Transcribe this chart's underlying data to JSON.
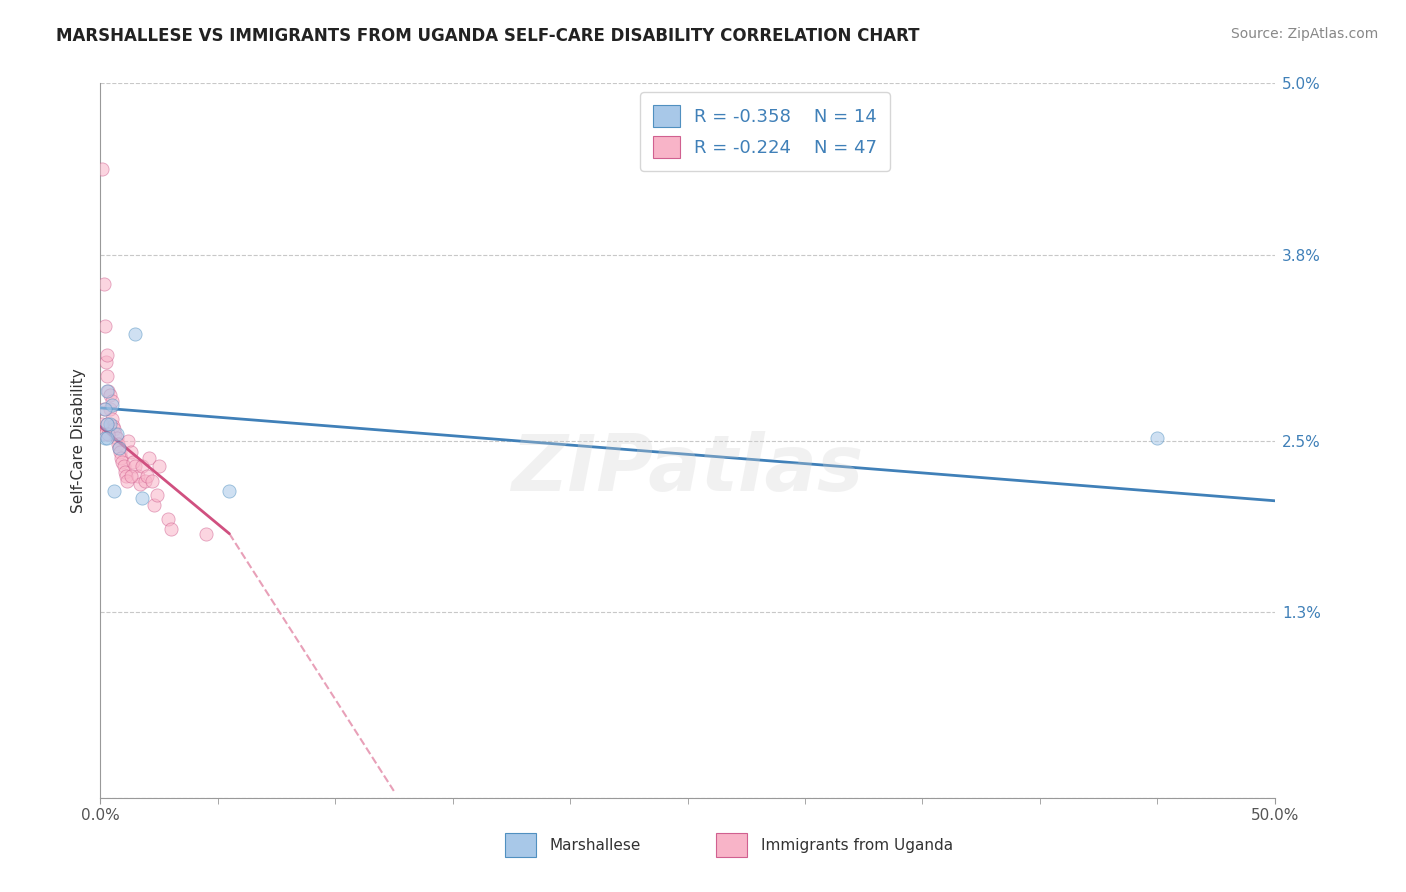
{
  "title": "MARSHALLESE VS IMMIGRANTS FROM UGANDA SELF-CARE DISABILITY CORRELATION CHART",
  "source": "Source: ZipAtlas.com",
  "ylabel": "Self-Care Disability",
  "xlim": [
    0.0,
    50.0
  ],
  "ylim": [
    0.0,
    5.0
  ],
  "yticks": [
    0.0,
    1.3,
    2.5,
    3.8,
    5.0
  ],
  "ytick_labels": [
    "",
    "1.3%",
    "2.5%",
    "3.8%",
    "5.0%"
  ],
  "xtick_labels": [
    "0.0%",
    "50.0%"
  ],
  "grid_color": "#c8c8c8",
  "background_color": "#ffffff",
  "blue_color": "#a8c8e8",
  "pink_color": "#f8b4c8",
  "blue_edge_color": "#5090c0",
  "pink_edge_color": "#d06090",
  "blue_line_color": "#4080b8",
  "pink_line_color": "#d05080",
  "dashed_line_color": "#e8a0b8",
  "legend_R_blue": "R = -0.358",
  "legend_N_blue": "N = 14",
  "legend_R_pink": "R = -0.224",
  "legend_N_pink": "N = 47",
  "legend_label_blue": "Marshallese",
  "legend_label_pink": "Immigrants from Uganda",
  "blue_scatter_x": [
    0.3,
    0.5,
    1.5,
    0.7,
    0.2,
    0.4,
    0.8,
    0.3,
    1.8,
    0.2,
    0.6,
    0.3,
    45.0,
    5.5
  ],
  "blue_scatter_y": [
    2.85,
    2.75,
    3.25,
    2.55,
    2.72,
    2.62,
    2.45,
    2.62,
    2.1,
    2.52,
    2.15,
    2.52,
    2.52,
    2.15
  ],
  "pink_scatter_x": [
    0.1,
    0.15,
    0.2,
    0.25,
    0.3,
    0.3,
    0.35,
    0.4,
    0.4,
    0.5,
    0.5,
    0.55,
    0.6,
    0.65,
    0.7,
    0.75,
    0.8,
    0.85,
    0.9,
    0.95,
    1.0,
    1.05,
    1.1,
    1.15,
    1.2,
    1.3,
    1.4,
    1.5,
    1.6,
    1.7,
    1.8,
    1.9,
    2.0,
    2.1,
    2.2,
    2.3,
    2.4,
    2.5,
    2.9,
    3.0,
    0.1,
    0.15,
    0.2,
    0.3,
    0.35,
    1.3,
    4.5
  ],
  "pink_scatter_y": [
    4.4,
    3.6,
    3.3,
    3.05,
    2.95,
    3.1,
    2.85,
    2.82,
    2.72,
    2.78,
    2.65,
    2.6,
    2.58,
    2.55,
    2.52,
    2.48,
    2.45,
    2.42,
    2.38,
    2.35,
    2.32,
    2.28,
    2.25,
    2.22,
    2.5,
    2.42,
    2.35,
    2.32,
    2.25,
    2.2,
    2.32,
    2.22,
    2.25,
    2.38,
    2.22,
    2.05,
    2.12,
    2.32,
    1.95,
    1.88,
    2.62,
    2.72,
    2.55,
    2.62,
    2.55,
    2.25,
    1.85
  ],
  "blue_trend_x": [
    0.0,
    50.0
  ],
  "blue_trend_y": [
    2.73,
    2.08
  ],
  "pink_trend_x": [
    0.0,
    5.5
  ],
  "pink_trend_y": [
    2.6,
    1.85
  ],
  "dashed_trend_x": [
    5.5,
    12.5
  ],
  "dashed_trend_y": [
    1.85,
    0.05
  ],
  "watermark": "ZIPatlas",
  "marker_size": 90,
  "marker_alpha": 0.55,
  "title_fontsize": 12,
  "source_fontsize": 10,
  "tick_fontsize": 11,
  "ylabel_fontsize": 11
}
